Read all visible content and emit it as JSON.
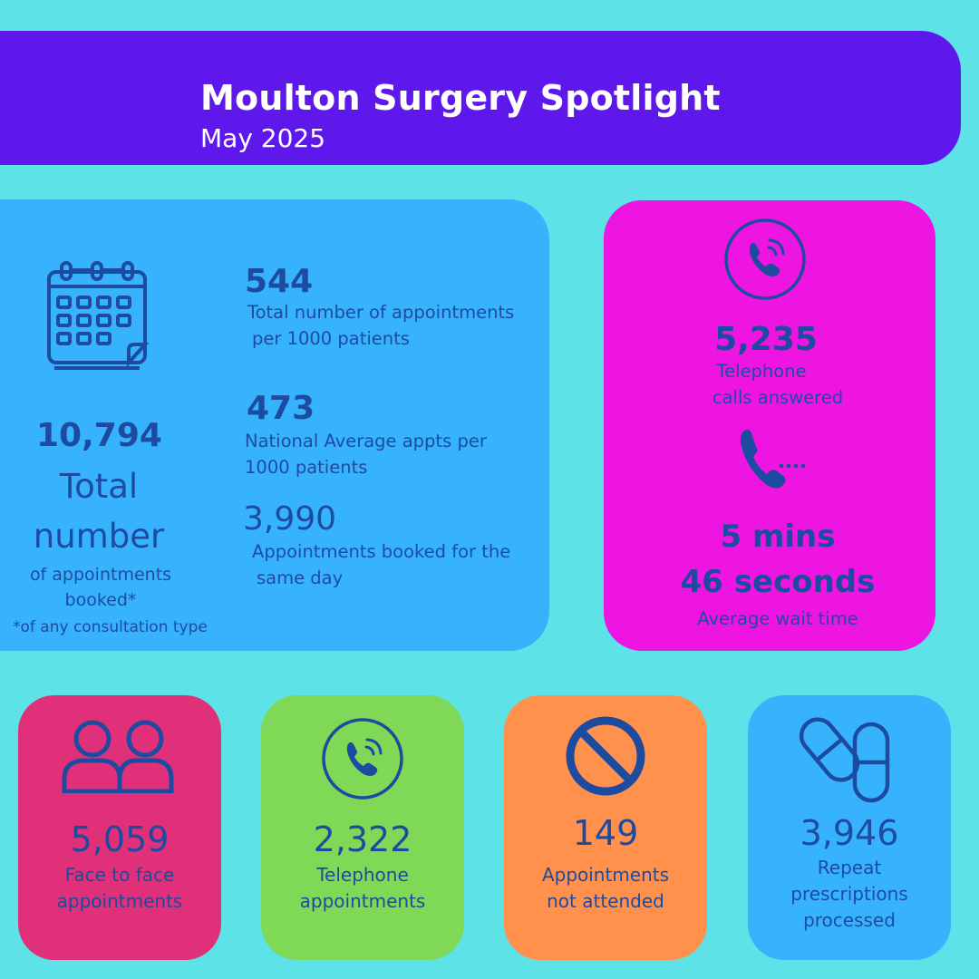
{
  "header": {
    "title": "Moulton Surgery Spotlight",
    "subtitle": "May 2025"
  },
  "appointments_panel": {
    "total_value": "10,794",
    "total_label_line1": "Total",
    "total_label_line2": "number",
    "total_label_line3": "of appointments",
    "total_label_line4": "booked*",
    "footnote": "*of any consultation type",
    "per1000_value": "544",
    "per1000_line1": "Total number of appointments",
    "per1000_line2": "per 1000 patients",
    "national_value": "473",
    "national_line1": "National Average appts per",
    "national_line2": "1000 patients",
    "sameday_value": "3,990",
    "sameday_line1": "Appointments booked for the",
    "sameday_line2": "same day",
    "icon": "calendar-icon"
  },
  "phone_panel": {
    "calls_value": "5,235",
    "calls_line1": "Telephone",
    "calls_line2": "calls answered",
    "wait_line1": "5 mins",
    "wait_line2": "46 seconds",
    "wait_label": "Average wait time",
    "icons": [
      "phone-circle-icon",
      "phone-calling-icon"
    ]
  },
  "cards": {
    "f2f": {
      "value": "5,059",
      "line1": "Face to face",
      "line2": "appointments",
      "icon": "people-icon"
    },
    "telephone": {
      "value": "2,322",
      "line1": "Telephone",
      "line2": "appointments",
      "icon": "phone-circle-icon"
    },
    "dna": {
      "value": "149",
      "line1": "Appointments",
      "line2": "not attended",
      "icon": "no-entry-icon"
    },
    "rx": {
      "value": "3,946",
      "line1": "Repeat",
      "line2": "prescriptions",
      "line3": "processed",
      "icon": "pills-icon"
    }
  },
  "colors": {
    "background": "#5de2e7",
    "banner": "#5f18ec",
    "blue_panel": "#37b3fe",
    "magenta_panel": "#ee15e3",
    "pink_card": "#e0307a",
    "green_card": "#7fd957",
    "orange_card": "#ff914d",
    "text": "#1d4ba0"
  }
}
